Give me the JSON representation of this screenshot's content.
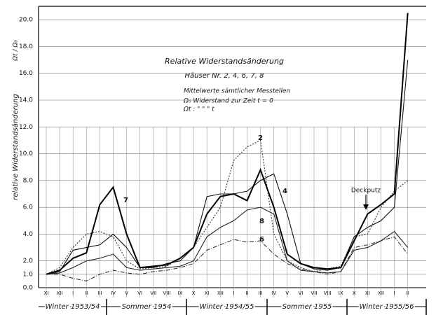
{
  "chart_data": {
    "type": "line",
    "title": "Relative Widerstandsänderung",
    "subtitle": "Häuser Nr. 2, 4, 6, 7, 8",
    "notes": [
      "Mittelwerte sämtlicher    Messtellen",
      "Ω₀    Widerstand zur Zeit  t = 0",
      "Ωt :        \"           \"     \"    t"
    ],
    "ylabel": "relative Widerstandsänderung",
    "ylabel_ratio": "Ωt / Ω₀",
    "annotation": "Deckputz",
    "seasons": [
      "Winter 1953/54",
      "Sommer 1954",
      "Winter 1954/55",
      "Sommer 1955",
      "Winter 1955/56"
    ],
    "categories": [
      "XI",
      "XII",
      "I",
      "II",
      "III",
      "IV",
      "V",
      "VI",
      "VII",
      "VIII",
      "IX",
      "X",
      "XI",
      "XII",
      "I",
      "II",
      "III",
      "IV",
      "V",
      "VI",
      "VII",
      "VIII",
      "IX",
      "X",
      "XI",
      "XII",
      "I",
      "II"
    ],
    "ylim": [
      0,
      21
    ],
    "yticks": [
      {
        "value": 0,
        "label": "0.0"
      },
      {
        "value": 1,
        "label": "1.0"
      },
      {
        "value": 2,
        "label": "2.0"
      },
      {
        "value": 4,
        "label": "4.0"
      },
      {
        "value": 6,
        "label": "6.0"
      },
      {
        "value": 8,
        "label": "8.0"
      },
      {
        "value": 10,
        "label": "10.0"
      },
      {
        "value": 12,
        "label": "12.0"
      },
      {
        "value": 14,
        "label": "14.0"
      },
      {
        "value": 16,
        "label": "16.0"
      },
      {
        "value": 18,
        "label": "18.0"
      },
      {
        "value": 20,
        "label": "20.0"
      }
    ],
    "grid": true,
    "series": [
      {
        "name": "2",
        "color": "#333333",
        "style": "dotted",
        "values": [
          1.0,
          1.5,
          3.0,
          4.0,
          4.2,
          3.8,
          2.0,
          1.4,
          1.5,
          1.6,
          2.2,
          3.0,
          4.5,
          6.0,
          9.5,
          10.5,
          11.0,
          4.0,
          2.0,
          1.5,
          1.2,
          1.4,
          1.6,
          3.8,
          4.0,
          6.0,
          7.2,
          8.0
        ]
      },
      {
        "name": "4",
        "color": "#111111",
        "style": "solid",
        "values": [
          1.0,
          1.2,
          2.8,
          3.0,
          3.2,
          4.0,
          3.0,
          1.5,
          1.5,
          1.8,
          2.0,
          3.0,
          6.8,
          7.0,
          7.0,
          7.2,
          8.0,
          8.5,
          5.5,
          1.8,
          1.4,
          1.3,
          1.5,
          3.8,
          4.5,
          5.0,
          6.0,
          17.0
        ]
      },
      {
        "name": "6",
        "color": "#333333",
        "style": "dashdot",
        "values": [
          1.0,
          1.0,
          0.7,
          0.5,
          1.0,
          1.3,
          1.1,
          1.0,
          1.2,
          1.3,
          1.5,
          1.8,
          2.8,
          3.2,
          3.6,
          3.4,
          3.5,
          2.5,
          1.8,
          1.4,
          1.2,
          1.0,
          1.2,
          3.0,
          3.2,
          3.5,
          3.8,
          2.5
        ]
      },
      {
        "name": "7",
        "color": "#000000",
        "style": "thick",
        "values": [
          1.0,
          1.3,
          2.2,
          2.6,
          6.2,
          7.5,
          4.0,
          1.5,
          1.6,
          1.7,
          2.2,
          3.0,
          5.5,
          6.8,
          7.0,
          6.5,
          8.8,
          6.0,
          2.5,
          1.8,
          1.5,
          1.4,
          1.5,
          3.5,
          5.5,
          6.2,
          7.0,
          20.5
        ]
      },
      {
        "name": "8",
        "color": "#222222",
        "style": "solid",
        "values": [
          1.0,
          1.1,
          1.5,
          2.0,
          2.2,
          2.5,
          1.5,
          1.3,
          1.4,
          1.5,
          1.6,
          2.0,
          3.8,
          4.5,
          5.0,
          5.8,
          6.0,
          5.5,
          2.0,
          1.3,
          1.2,
          1.1,
          1.2,
          2.8,
          3.0,
          3.5,
          4.2,
          3.0
        ]
      }
    ]
  }
}
